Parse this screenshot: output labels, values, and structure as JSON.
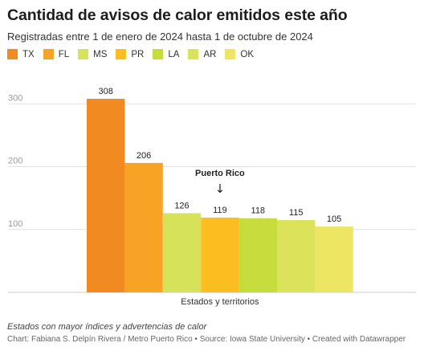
{
  "header": {
    "title": "Cantidad de avisos de calor emitidos este año",
    "subtitle": "Registradas entre 1 de enero de 2024 hasta 1 de octubre de 2024"
  },
  "chart_data": {
    "type": "bar",
    "title": "Cantidad de avisos de calor emitidos este año",
    "subtitle": "Registradas entre 1 de enero de 2024 hasta 1 de octubre de 2024",
    "xlabel": "Estados y territorios",
    "ylabel": "",
    "categories": [
      "TX",
      "FL",
      "MS",
      "PR",
      "LA",
      "AR",
      "OK"
    ],
    "values": [
      308,
      206,
      126,
      119,
      118,
      115,
      105
    ],
    "value_labels": [
      "308",
      "206",
      "126",
      "119",
      "118",
      "115",
      "105"
    ],
    "colors": [
      "#f28a22",
      "#f7a323",
      "#d6e35a",
      "#fbbd1f",
      "#c5dc3c",
      "#dbe35a",
      "#ece663"
    ],
    "ylim": [
      0,
      340
    ],
    "yticks": [
      100,
      200,
      300
    ],
    "ytick_labels": [
      "100",
      "200",
      "300"
    ],
    "grid": true,
    "legend_position": "top-left",
    "annotation": {
      "category": "PR",
      "text": "Puerto Rico",
      "arrow": "↓"
    }
  },
  "footer": {
    "notes": "Estados con mayor índices y advertencias de calor",
    "credit": "Chart: Fabiana S. Delpín Rivera / Metro Puerto Rico • Source: Iowa State University • Created with Datawrapper"
  }
}
